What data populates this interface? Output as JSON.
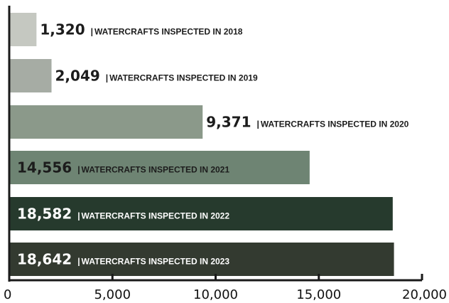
{
  "chart_data": {
    "type": "bar",
    "orientation": "horizontal",
    "categories": [
      "2018",
      "2019",
      "2020",
      "2021",
      "2022",
      "2023"
    ],
    "values": [
      1320,
      2049,
      9371,
      14556,
      18582,
      18642
    ],
    "value_labels": [
      "1,320",
      "2,049",
      "9,371",
      "14,556",
      "18,582",
      "18,642"
    ],
    "bar_labels": [
      "WATERCRAFTS INSPECTED IN 2018",
      "WATERCRAFTS INSPECTED IN 2019",
      "WATERCRAFTS INSPECTED IN 2020",
      "WATERCRAFTS INSPECTED IN 2021",
      "WATERCRAFTS INSPECTED IN 2022",
      "WATERCRAFTS INSPECTED IN 2023"
    ],
    "bar_colors": [
      "#c5c8c1",
      "#a6aca4",
      "#8b998a",
      "#6e8473",
      "#263a2d",
      "#333a30"
    ],
    "label_inside": [
      false,
      false,
      false,
      true,
      true,
      true
    ],
    "xlim": [
      0,
      20000
    ],
    "x_ticks": [
      0,
      5000,
      10000,
      15000,
      20000
    ],
    "x_tick_labels": [
      "0",
      "5,000",
      "10,000",
      "15,000",
      "20,000"
    ],
    "title": "",
    "xlabel": "",
    "ylabel": "",
    "grid": false,
    "legend": false
  }
}
